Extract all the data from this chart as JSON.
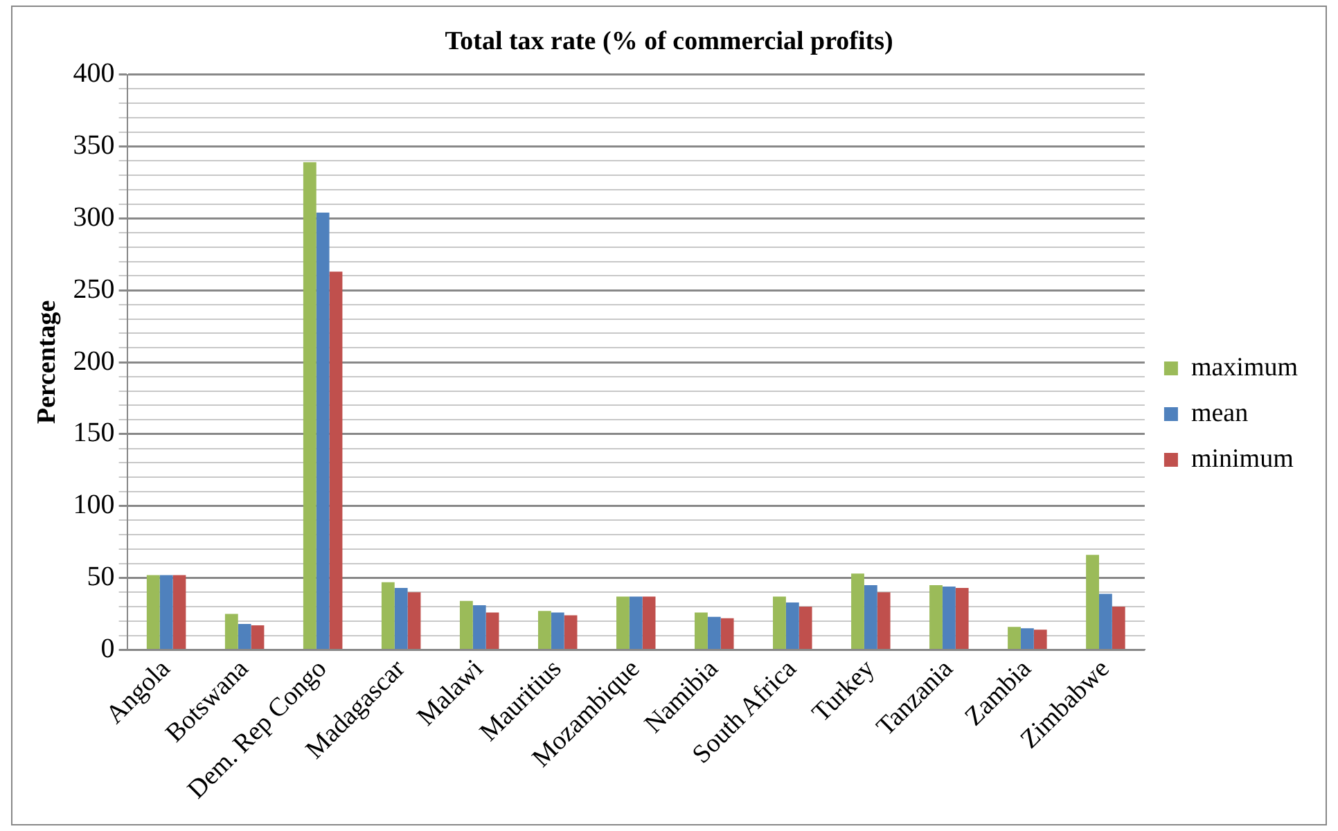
{
  "chart_data": {
    "type": "bar",
    "title": "Total tax rate (% of commercial profits)",
    "ylabel": "Percentage",
    "categories": [
      "Angola",
      "Botswana",
      "Dem. Rep Congo",
      "Madagascar",
      "Malawi",
      "Mauritius",
      "Mozambique",
      "Namibia",
      "South Africa",
      "Turkey",
      "Tanzania",
      "Zambia",
      "Zimbabwe"
    ],
    "series": [
      {
        "name": "maximum",
        "color": "#9bbb59",
        "values": [
          52,
          25,
          339,
          47,
          34,
          27,
          37,
          26,
          37,
          53,
          45,
          16,
          66
        ]
      },
      {
        "name": "mean",
        "color": "#4f81bd",
        "values": [
          52,
          18,
          304,
          43,
          31,
          26,
          37,
          23,
          33,
          45,
          44,
          15,
          39
        ]
      },
      {
        "name": "minimum",
        "color": "#c0504d",
        "values": [
          52,
          17,
          263,
          40,
          26,
          24,
          37,
          22,
          30,
          40,
          43,
          14,
          30
        ]
      }
    ],
    "ylim": [
      0,
      400
    ],
    "yticks": [
      0,
      {
        "value": 10,
        "label": null
      },
      {
        "value": 20,
        "label": null
      },
      {
        "value": 30,
        "label": null
      },
      {
        "value": 40,
        "label": null
      },
      50,
      {
        "value": 60,
        "label": null
      },
      {
        "value": 70,
        "label": null
      },
      {
        "value": 80,
        "label": null
      },
      {
        "value": 90,
        "label": null
      },
      100,
      {
        "value": 110,
        "label": null
      },
      {
        "value": 120,
        "label": null
      },
      {
        "value": 130,
        "label": null
      },
      {
        "value": 140,
        "label": null
      },
      150,
      {
        "value": 160,
        "label": null
      },
      {
        "value": 170,
        "label": null
      },
      {
        "value": 180,
        "label": null
      },
      {
        "value": 190,
        "label": null
      },
      200,
      {
        "value": 210,
        "label": null
      },
      {
        "value": 220,
        "label": null
      },
      {
        "value": 230,
        "label": null
      },
      {
        "value": 240,
        "label": null
      },
      250,
      {
        "value": 260,
        "label": null
      },
      {
        "value": 270,
        "label": null
      },
      {
        "value": 280,
        "label": null
      },
      {
        "value": 290,
        "label": null
      },
      300,
      {
        "value": 310,
        "label": null
      },
      {
        "value": 320,
        "label": null
      },
      {
        "value": 330,
        "label": null
      },
      {
        "value": 340,
        "label": null
      },
      350,
      {
        "value": 360,
        "label": null
      },
      {
        "value": 370,
        "label": null
      },
      {
        "value": 380,
        "label": null
      },
      {
        "value": 390,
        "label": null
      },
      400
    ],
    "grid": "y",
    "legend": "right"
  }
}
